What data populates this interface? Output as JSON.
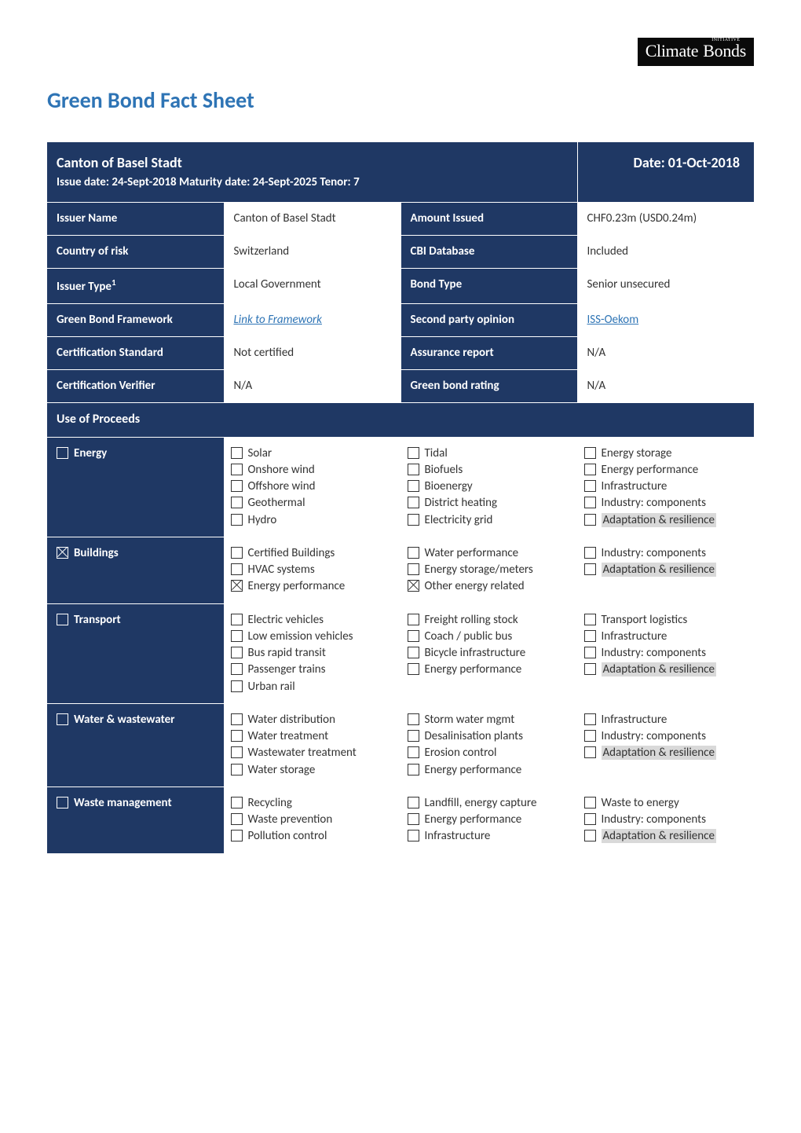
{
  "logo": {
    "word1": "Climate",
    "word2": "Bonds",
    "small": "INITIATIVE"
  },
  "page_title": "Green Bond Fact Sheet",
  "header": {
    "issuer_title": "Canton of Basel Stadt",
    "issue_info": "Issue date: 24-Sept-2018  Maturity date: 24-Sept-2025 Tenor: 7",
    "date": "Date: 01-Oct-2018"
  },
  "info_rows": [
    {
      "l1": "Issuer Name",
      "v1": "Canton of Basel Stadt",
      "l2": "Amount Issued",
      "v2": "CHF0.23m (USD0.24m)"
    },
    {
      "l1": "Country of risk",
      "v1": "Switzerland",
      "l2": "CBI Database",
      "v2": "Included"
    },
    {
      "l1": "Issuer Type",
      "sup": "1",
      "v1": "Local Government",
      "l2": "Bond Type",
      "v2": "Senior unsecured"
    },
    {
      "l1": "Green Bond Framework",
      "v1_link": "Link to Framework",
      "l2": "Second party opinion",
      "v2_link": "ISS-Oekom"
    },
    {
      "l1": "Certification Standard",
      "v1": "Not certified",
      "l2": "Assurance report",
      "v2": "N/A"
    },
    {
      "l1": "Certification Verifier",
      "v1": "N/A",
      "l2": "Green bond rating",
      "v2": "N/A"
    }
  ],
  "uop_header": "Use of Proceeds",
  "uop_rows": [
    {
      "label": "Energy",
      "label_checked": false,
      "c1": [
        {
          "t": "Solar",
          "c": false
        },
        {
          "t": "Onshore wind",
          "c": false
        },
        {
          "t": "Offshore wind",
          "c": false
        },
        {
          "t": "Geothermal",
          "c": false
        },
        {
          "t": "Hydro",
          "c": false
        }
      ],
      "c2": [
        {
          "t": "Tidal",
          "c": false
        },
        {
          "t": "Biofuels",
          "c": false
        },
        {
          "t": "Bioenergy",
          "c": false
        },
        {
          "t": "District heating",
          "c": false
        },
        {
          "t": "Electricity grid",
          "c": false
        }
      ],
      "c3": [
        {
          "t": "Energy storage",
          "c": false
        },
        {
          "t": "Energy performance",
          "c": false
        },
        {
          "t": "Infrastructure",
          "c": false
        },
        {
          "t": "Industry: components",
          "c": false
        },
        {
          "t": "Adaptation & resilience",
          "c": false,
          "hl": true
        }
      ]
    },
    {
      "label": "Buildings",
      "label_checked": true,
      "c1": [
        {
          "t": "Certified Buildings",
          "c": false
        },
        {
          "t": "HVAC systems",
          "c": false
        },
        {
          "t": "Energy performance",
          "c": true,
          "wrap": true
        }
      ],
      "c2": [
        {
          "t": "Water performance",
          "c": false
        },
        {
          "t": "Energy storage/meters",
          "c": false
        },
        {
          "t": "Other energy related",
          "c": true
        }
      ],
      "c3": [
        {
          "t": "Industry: components",
          "c": false
        },
        {
          "t": "Adaptation & resilience",
          "c": false,
          "hl": true
        }
      ]
    },
    {
      "label": "Transport",
      "label_checked": false,
      "c1": [
        {
          "t": "Electric vehicles",
          "c": false
        },
        {
          "t": "Low emission vehicles",
          "c": false,
          "wrap": true
        },
        {
          "t": "Bus rapid transit",
          "c": false
        },
        {
          "t": "Passenger trains",
          "c": false
        },
        {
          "t": "Urban rail",
          "c": false
        }
      ],
      "c2": [
        {
          "t": "Freight rolling stock",
          "c": false
        },
        {
          "t": "Coach / public bus",
          "c": false
        },
        {
          "t": "Bicycle infrastructure",
          "c": false
        },
        {
          "t": "Energy performance",
          "c": false
        }
      ],
      "c3": [
        {
          "t": "Transport logistics",
          "c": false
        },
        {
          "t": "Infrastructure",
          "c": false
        },
        {
          "t": "Industry: components",
          "c": false
        },
        {
          "t": "Adaptation & resilience",
          "c": false,
          "hl": true
        }
      ]
    },
    {
      "label": "Water & wastewater",
      "label_checked": false,
      "c1": [
        {
          "t": "Water distribution",
          "c": false
        },
        {
          "t": "Water treatment",
          "c": false
        },
        {
          "t": "Wastewater treatment",
          "c": false,
          "wrap": true
        },
        {
          "t": "Water storage",
          "c": false
        }
      ],
      "c2": [
        {
          "t": "Storm water mgmt",
          "c": false
        },
        {
          "t": "Desalinisation plants",
          "c": false
        },
        {
          "t": "Erosion control",
          "c": false
        },
        {
          "t": "Energy performance",
          "c": false
        }
      ],
      "c3": [
        {
          "t": "Infrastructure",
          "c": false
        },
        {
          "t": "Industry: components",
          "c": false
        },
        {
          "t": "Adaptation & resilience",
          "c": false,
          "hl": true
        }
      ]
    },
    {
      "label": "Waste management",
      "label_checked": false,
      "c1": [
        {
          "t": "Recycling",
          "c": false
        },
        {
          "t": "Waste prevention",
          "c": false
        },
        {
          "t": "Pollution control",
          "c": false
        }
      ],
      "c2": [
        {
          "t": "Landfill, energy capture",
          "c": false
        },
        {
          "t": "Energy performance",
          "c": false
        },
        {
          "t": "Infrastructure",
          "c": false
        }
      ],
      "c3": [
        {
          "t": "Waste to energy",
          "c": false
        },
        {
          "t": "Industry: components",
          "c": false
        },
        {
          "t": "Adaptation & resilience",
          "c": false,
          "hl": true
        }
      ]
    }
  ]
}
